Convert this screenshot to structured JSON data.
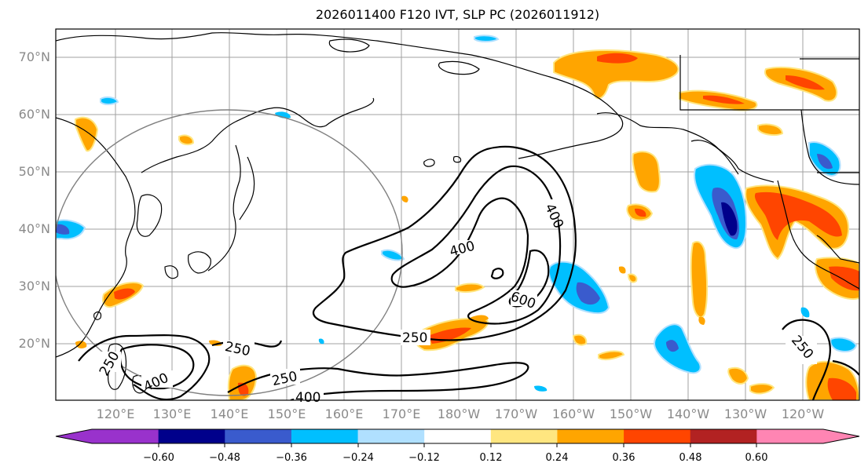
{
  "title": "2026011400 F120 IVT, SLP PC (2026011912)",
  "lat_labels": [
    "70°N",
    "60°N",
    "50°N",
    "40°N",
    "30°N",
    "20°N"
  ],
  "lon_labels": [
    "120°E",
    "130°E",
    "140°E",
    "150°E",
    "160°E",
    "170°E",
    "180°W",
    "170°W",
    "160°W",
    "150°W",
    "140°W",
    "130°W",
    "120°W"
  ],
  "contour_labels": [
    "400",
    "400",
    "600",
    "250",
    "250",
    "250",
    "400",
    "250",
    "400",
    "250"
  ],
  "colorbar": {
    "colors": [
      "#9932cc",
      "#00008b",
      "#3a5bcd",
      "#00bfff",
      "#b0e0ff",
      "#ffffff",
      "#ffe680",
      "#ffa500",
      "#ff4500",
      "#b22222",
      "#ff85b3"
    ],
    "tick_labels": [
      "−0.60",
      "−0.48",
      "−0.36",
      "−0.24",
      "−0.12",
      "0.12",
      "0.24",
      "0.36",
      "0.48",
      "0.60"
    ]
  }
}
